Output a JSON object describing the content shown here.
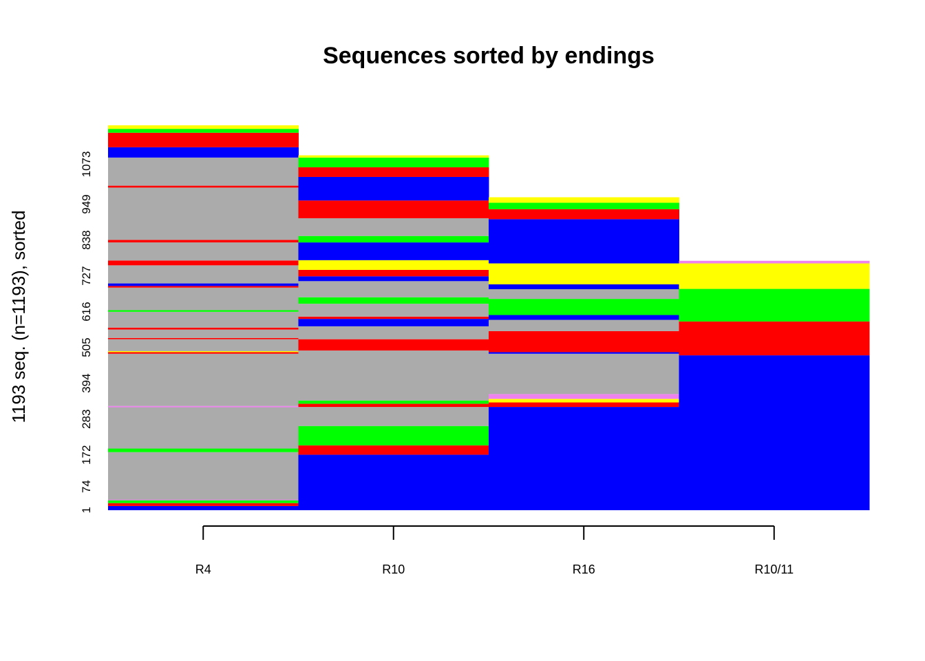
{
  "chart_data": {
    "type": "heatmap",
    "subtype": "sequence index plot",
    "title": "Sequences sorted by endings",
    "ylabel": "1193 seq. (n=1193), sorted",
    "n_sequences": 1193,
    "ylim": [
      0,
      1193
    ],
    "categories": [
      "R4",
      "R10",
      "R16",
      "R10/11"
    ],
    "y_ticks": [
      1,
      74,
      172,
      283,
      394,
      505,
      616,
      727,
      838,
      949,
      1073
    ],
    "state_colors": {
      "B": "#0000FF",
      "R": "#FF0000",
      "G": "#00FF00",
      "Y": "#FFFF00",
      "V": "#EE82EE",
      "A": "#ABABAB"
    },
    "columns": [
      {
        "name": "R4",
        "segments": [
          [
            0,
            13,
            "B"
          ],
          [
            13,
            22,
            "R"
          ],
          [
            22,
            33,
            "G"
          ],
          [
            33,
            33,
            "V"
          ],
          [
            33,
            180,
            "A"
          ],
          [
            180,
            191,
            "G"
          ],
          [
            191,
            319,
            "A"
          ],
          [
            319,
            323,
            "V"
          ],
          [
            323,
            485,
            "A"
          ],
          [
            485,
            490,
            "R"
          ],
          [
            490,
            493,
            "Y"
          ],
          [
            493,
            530,
            "A"
          ],
          [
            530,
            534,
            "R"
          ],
          [
            534,
            560,
            "A"
          ],
          [
            560,
            566,
            "R"
          ],
          [
            566,
            615,
            "A"
          ],
          [
            615,
            620,
            "G"
          ],
          [
            620,
            690,
            "A"
          ],
          [
            690,
            695,
            "R"
          ],
          [
            695,
            703,
            "B"
          ],
          [
            703,
            759,
            "A"
          ],
          [
            759,
            774,
            "R"
          ],
          [
            774,
            830,
            "A"
          ],
          [
            830,
            838,
            "R"
          ],
          [
            838,
            1000,
            "A"
          ],
          [
            1000,
            1006,
            "R"
          ],
          [
            1006,
            1093,
            "A"
          ],
          [
            1093,
            1125,
            "B"
          ],
          [
            1125,
            1170,
            "R"
          ],
          [
            1170,
            1182,
            "G"
          ],
          [
            1182,
            1193,
            "Y"
          ]
        ]
      },
      {
        "name": "R10",
        "segments": [
          [
            0,
            172,
            "B"
          ],
          [
            172,
            201,
            "R"
          ],
          [
            201,
            261,
            "G"
          ],
          [
            261,
            320,
            "A"
          ],
          [
            320,
            330,
            "R"
          ],
          [
            330,
            340,
            "G"
          ],
          [
            340,
            495,
            "A"
          ],
          [
            495,
            530,
            "R"
          ],
          [
            530,
            570,
            "A"
          ],
          [
            570,
            593,
            "B"
          ],
          [
            593,
            600,
            "R"
          ],
          [
            600,
            640,
            "A"
          ],
          [
            640,
            660,
            "G"
          ],
          [
            660,
            710,
            "A"
          ],
          [
            710,
            725,
            "B"
          ],
          [
            725,
            745,
            "R"
          ],
          [
            745,
            775,
            "Y"
          ],
          [
            775,
            830,
            "B"
          ],
          [
            830,
            850,
            "G"
          ],
          [
            850,
            905,
            "A"
          ],
          [
            905,
            960,
            "R"
          ],
          [
            960,
            1033,
            "B"
          ],
          [
            1033,
            1063,
            "R"
          ],
          [
            1063,
            1093,
            "G"
          ],
          [
            1093,
            1100,
            "Y"
          ]
        ]
      },
      {
        "name": "R16",
        "segments": [
          [
            0,
            320,
            "B"
          ],
          [
            320,
            334,
            "R"
          ],
          [
            334,
            345,
            "Y"
          ],
          [
            345,
            360,
            "V"
          ],
          [
            360,
            485,
            "A"
          ],
          [
            485,
            490,
            "B"
          ],
          [
            490,
            555,
            "R"
          ],
          [
            555,
            590,
            "A"
          ],
          [
            590,
            605,
            "B"
          ],
          [
            605,
            655,
            "G"
          ],
          [
            655,
            685,
            "A"
          ],
          [
            685,
            700,
            "B"
          ],
          [
            700,
            765,
            "Y"
          ],
          [
            765,
            902,
            "B"
          ],
          [
            902,
            933,
            "R"
          ],
          [
            933,
            953,
            "G"
          ],
          [
            953,
            970,
            "Y"
          ]
        ]
      },
      {
        "name": "R10/11",
        "segments": [
          [
            0,
            480,
            "B"
          ],
          [
            480,
            585,
            "R"
          ],
          [
            585,
            686,
            "G"
          ],
          [
            686,
            765,
            "Y"
          ],
          [
            765,
            773,
            "V"
          ]
        ]
      }
    ]
  }
}
